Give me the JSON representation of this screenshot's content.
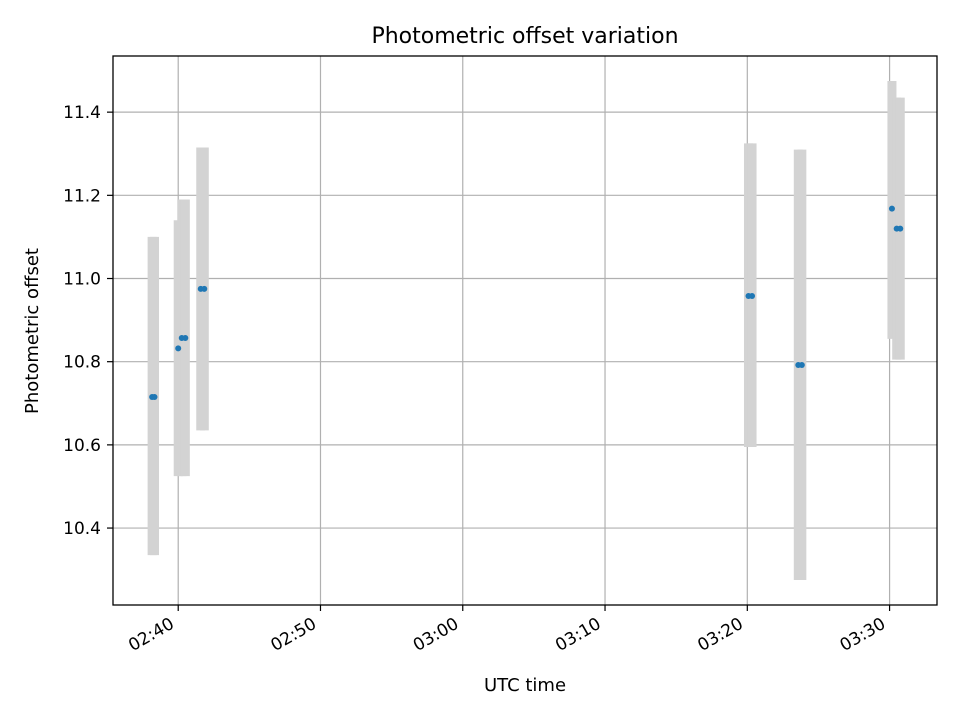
{
  "chart_data": {
    "type": "scatter",
    "title": "Photometric offset variation",
    "xlabel": "UTC time",
    "ylabel": "Photometric offset",
    "x_ticks": [
      "02:40",
      "02:50",
      "03:00",
      "03:10",
      "03:20",
      "03:30"
    ],
    "y_ticks": [
      "10.4",
      "10.6",
      "10.8",
      "11.0",
      "11.2",
      "11.4"
    ],
    "xlim": [
      "02:35:25",
      "03:33:20"
    ],
    "ylim": [
      10.215,
      11.535
    ],
    "grid": true,
    "colors": {
      "point": "#1f77b4",
      "error_bar": "#d3d3d3",
      "grid": "#b0b0b0"
    },
    "series": [
      {
        "points": [
          {
            "x": "02:38:10",
            "y": 10.715,
            "ylow": 10.335,
            "yhigh": 11.1
          },
          {
            "x": "02:38:20",
            "y": 10.715,
            "ylow": 10.335,
            "yhigh": 11.1
          },
          {
            "x": "02:40:00",
            "y": 10.832,
            "ylow": 10.525,
            "yhigh": 11.14
          },
          {
            "x": "02:40:15",
            "y": 10.857,
            "ylow": 10.525,
            "yhigh": 11.19
          },
          {
            "x": "02:40:30",
            "y": 10.857,
            "ylow": 10.525,
            "yhigh": 11.19
          },
          {
            "x": "02:41:35",
            "y": 10.975,
            "ylow": 10.635,
            "yhigh": 11.315
          },
          {
            "x": "02:41:50",
            "y": 10.975,
            "ylow": 10.635,
            "yhigh": 11.315
          },
          {
            "x": "03:20:05",
            "y": 10.958,
            "ylow": 10.595,
            "yhigh": 11.325
          },
          {
            "x": "03:20:20",
            "y": 10.958,
            "ylow": 10.595,
            "yhigh": 11.325
          },
          {
            "x": "03:23:35",
            "y": 10.792,
            "ylow": 10.275,
            "yhigh": 11.31
          },
          {
            "x": "03:23:50",
            "y": 10.792,
            "ylow": 10.275,
            "yhigh": 11.31
          },
          {
            "x": "03:30:10",
            "y": 11.168,
            "ylow": 10.855,
            "yhigh": 11.475
          },
          {
            "x": "03:30:30",
            "y": 11.12,
            "ylow": 10.805,
            "yhigh": 11.435
          },
          {
            "x": "03:30:45",
            "y": 11.12,
            "ylow": 10.805,
            "yhigh": 11.435
          }
        ]
      }
    ]
  }
}
